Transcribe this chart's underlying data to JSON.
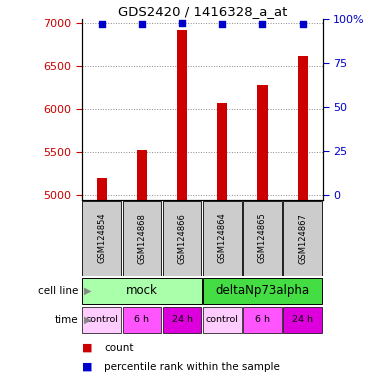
{
  "title": "GDS2420 / 1416328_a_at",
  "samples": [
    "GSM124854",
    "GSM124868",
    "GSM124866",
    "GSM124864",
    "GSM124865",
    "GSM124867"
  ],
  "counts": [
    5200,
    5530,
    6920,
    6080,
    6280,
    6620
  ],
  "percentile_ranks": [
    97,
    97,
    98,
    97,
    97,
    97
  ],
  "ylim_left": [
    4950,
    7050
  ],
  "ylim_right": [
    -2.38,
    100
  ],
  "yticks_left": [
    5000,
    5500,
    6000,
    6500,
    7000
  ],
  "yticks_right": [
    0,
    25,
    50,
    75,
    100
  ],
  "bar_color": "#cc0000",
  "dot_color": "#0000cc",
  "bar_bottom": 4950,
  "cell_line_labels": [
    "mock",
    "deltaNp73alpha"
  ],
  "cell_line_groups": [
    [
      0,
      1,
      2
    ],
    [
      3,
      4,
      5
    ]
  ],
  "cell_line_colors": [
    "#aaffaa",
    "#44dd44"
  ],
  "time_labels": [
    "control",
    "6 h",
    "24 h",
    "control",
    "6 h",
    "24 h"
  ],
  "time_colors": [
    "#ffccff",
    "#ff55ff",
    "#dd00dd",
    "#ffccff",
    "#ff55ff",
    "#dd00dd"
  ],
  "sample_box_color": "#cccccc",
  "legend_count_color": "#cc0000",
  "legend_pct_color": "#0000cc",
  "grid_color": "#888888",
  "left_tick_color": "#cc0000",
  "right_tick_color": "#0000cc",
  "bar_width": 0.25
}
